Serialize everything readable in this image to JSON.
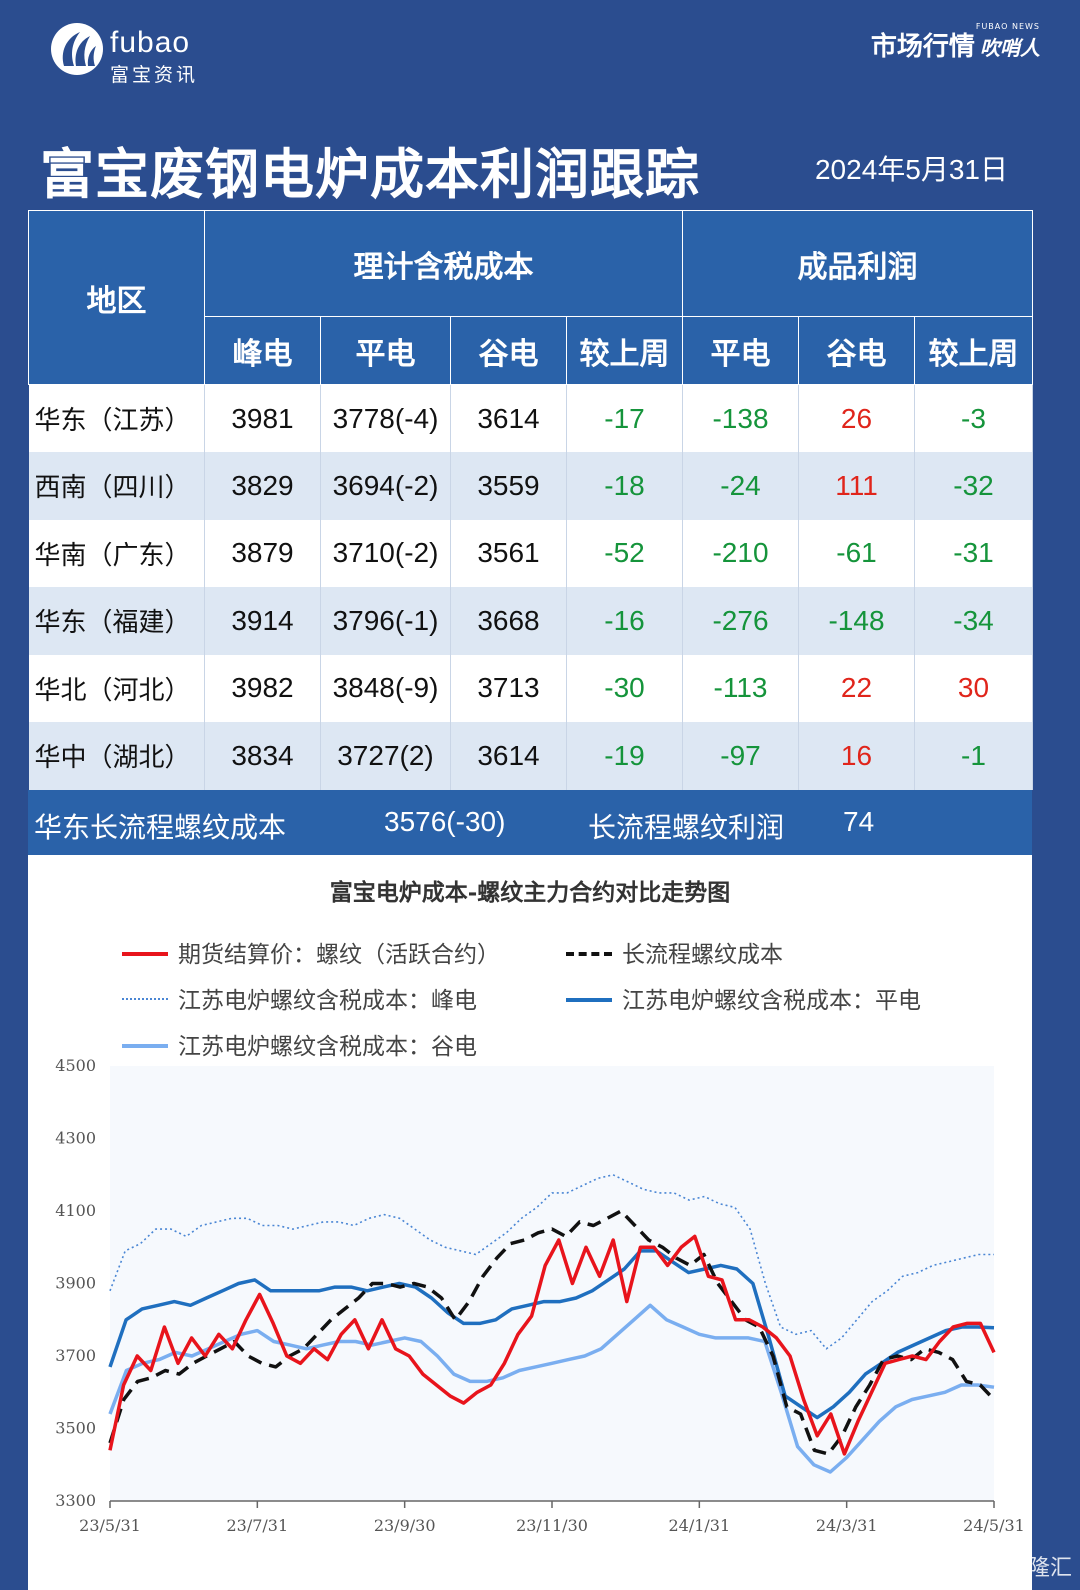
{
  "header": {
    "logo_text": "fubao",
    "logo_sub": "富宝资讯",
    "brand_big": "市场行情",
    "brand_small": "吹哨人",
    "brand_tiny": "FUBAO NEWS",
    "title": "富宝废钢电炉成本利润跟踪",
    "date": "2024年5月31日"
  },
  "table": {
    "col_region": "地区",
    "group_cost": "理计含税成本",
    "group_profit": "成品利润",
    "sub_headers": [
      "峰电",
      "平电",
      "谷电",
      "较上周",
      "平电",
      "谷电",
      "较上周"
    ],
    "rows": [
      {
        "region": "华东（江苏）",
        "cells": [
          "3981",
          "3778(-4)",
          "3614",
          "-17",
          "-138",
          "26",
          "-3"
        ]
      },
      {
        "region": "西南（四川）",
        "cells": [
          "3829",
          "3694(-2)",
          "3559",
          "-18",
          "-24",
          "111",
          "-32"
        ]
      },
      {
        "region": "华南（广东）",
        "cells": [
          "3879",
          "3710(-2)",
          "3561",
          "-52",
          "-210",
          "-61",
          "-31"
        ]
      },
      {
        "region": "华东（福建）",
        "cells": [
          "3914",
          "3796(-1)",
          "3668",
          "-16",
          "-276",
          "-148",
          "-34"
        ]
      },
      {
        "region": "华北（河北）",
        "cells": [
          "3982",
          "3848(-9)",
          "3713",
          "-30",
          "-113",
          "22",
          "30"
        ]
      },
      {
        "region": "华中（湖北）",
        "cells": [
          "3834",
          "3727(2)",
          "3614",
          "-19",
          "-97",
          "16",
          "-1"
        ]
      }
    ]
  },
  "summary": {
    "cost_label": "华东长流程螺纹成本",
    "cost_value": "3576(-30)",
    "profit_label": "长流程螺纹利润",
    "profit_value": "74"
  },
  "colors": {
    "header_bg": "#2b4d8f",
    "table_head": "#2a62a9",
    "negative": "#15943b",
    "positive": "#e0251b",
    "futures": "#e8141c",
    "long_process": "#111111",
    "peak": "#4a86d4",
    "flat": "#1f6fbf",
    "valley": "#7aaef0"
  },
  "watermark": "格隆汇",
  "chart_data": {
    "type": "line",
    "title": "富宝电炉成本-螺纹主力合约对比走势图",
    "x_ticks": [
      "23/5/31",
      "23/7/31",
      "23/9/30",
      "23/11/30",
      "24/1/31",
      "24/3/31",
      "24/5/31"
    ],
    "ylim": [
      3300,
      4500
    ],
    "y_ticks": [
      3300,
      3500,
      3700,
      3900,
      4100,
      4300,
      4500
    ],
    "grid": false,
    "legend": "top",
    "series": [
      {
        "name": "期货结算价：螺纹（活跃合约）",
        "style": "solid-red",
        "values": [
          3440,
          3620,
          3700,
          3660,
          3780,
          3680,
          3750,
          3700,
          3760,
          3720,
          3800,
          3870,
          3790,
          3700,
          3680,
          3720,
          3690,
          3760,
          3800,
          3720,
          3800,
          3720,
          3700,
          3650,
          3620,
          3590,
          3570,
          3600,
          3620,
          3680,
          3760,
          3810,
          3950,
          4020,
          3900,
          4000,
          3920,
          4020,
          3850,
          4000,
          4000,
          3950,
          4000,
          4030,
          3920,
          3910,
          3800,
          3800,
          3780,
          3750,
          3700,
          3580,
          3480,
          3540,
          3430,
          3520,
          3600,
          3680,
          3690,
          3700,
          3690,
          3740,
          3780,
          3790,
          3790,
          3710
        ]
      },
      {
        "name": "长流程螺纹成本",
        "style": "dashed-black",
        "values": [
          3460,
          3580,
          3630,
          3640,
          3660,
          3650,
          3680,
          3700,
          3720,
          3740,
          3700,
          3680,
          3670,
          3700,
          3720,
          3760,
          3800,
          3830,
          3860,
          3900,
          3900,
          3890,
          3900,
          3890,
          3860,
          3800,
          3850,
          3920,
          3970,
          4010,
          4020,
          4040,
          4050,
          4030,
          4070,
          4060,
          4080,
          4100,
          4060,
          4020,
          4000,
          3970,
          3950,
          3980,
          3900,
          3850,
          3800,
          3780,
          3700,
          3560,
          3540,
          3440,
          3430,
          3480,
          3560,
          3620,
          3690,
          3700,
          3690,
          3720,
          3710,
          3690,
          3630,
          3620,
          3580
        ]
      },
      {
        "name": "江苏电炉螺纹含税成本：峰电",
        "style": "dotted-blue",
        "values": [
          3880,
          3990,
          4010,
          4050,
          4050,
          4030,
          4060,
          4070,
          4080,
          4080,
          4060,
          4060,
          4050,
          4060,
          4070,
          4070,
          4060,
          4080,
          4090,
          4080,
          4050,
          4020,
          4000,
          3990,
          3980,
          4010,
          4040,
          4080,
          4110,
          4150,
          4150,
          4170,
          4190,
          4200,
          4180,
          4160,
          4150,
          4150,
          4130,
          4140,
          4120,
          4110,
          4050,
          3900,
          3780,
          3760,
          3770,
          3720,
          3750,
          3800,
          3850,
          3880,
          3920,
          3930,
          3950,
          3960,
          3970,
          3980,
          3980
        ]
      },
      {
        "name": "江苏电炉螺纹含税成本：平电",
        "style": "solid-darkblue",
        "values": [
          3670,
          3800,
          3830,
          3840,
          3850,
          3840,
          3860,
          3880,
          3900,
          3910,
          3880,
          3880,
          3880,
          3880,
          3890,
          3890,
          3880,
          3890,
          3900,
          3890,
          3860,
          3820,
          3790,
          3790,
          3800,
          3830,
          3840,
          3850,
          3850,
          3860,
          3880,
          3910,
          3940,
          3990,
          3990,
          3960,
          3930,
          3940,
          3950,
          3940,
          3900,
          3750,
          3590,
          3560,
          3530,
          3560,
          3600,
          3650,
          3680,
          3710,
          3730,
          3750,
          3770,
          3780,
          3780,
          3778
        ]
      },
      {
        "name": "江苏电炉螺纹含税成本：谷电",
        "style": "solid-lightblue",
        "values": [
          3540,
          3660,
          3680,
          3690,
          3710,
          3700,
          3720,
          3740,
          3760,
          3770,
          3740,
          3730,
          3720,
          3730,
          3740,
          3740,
          3730,
          3740,
          3750,
          3740,
          3700,
          3650,
          3630,
          3630,
          3640,
          3660,
          3670,
          3680,
          3690,
          3700,
          3720,
          3760,
          3800,
          3840,
          3800,
          3780,
          3760,
          3750,
          3750,
          3750,
          3740,
          3600,
          3450,
          3400,
          3380,
          3420,
          3470,
          3520,
          3560,
          3580,
          3590,
          3600,
          3620,
          3620,
          3614
        ]
      }
    ]
  }
}
